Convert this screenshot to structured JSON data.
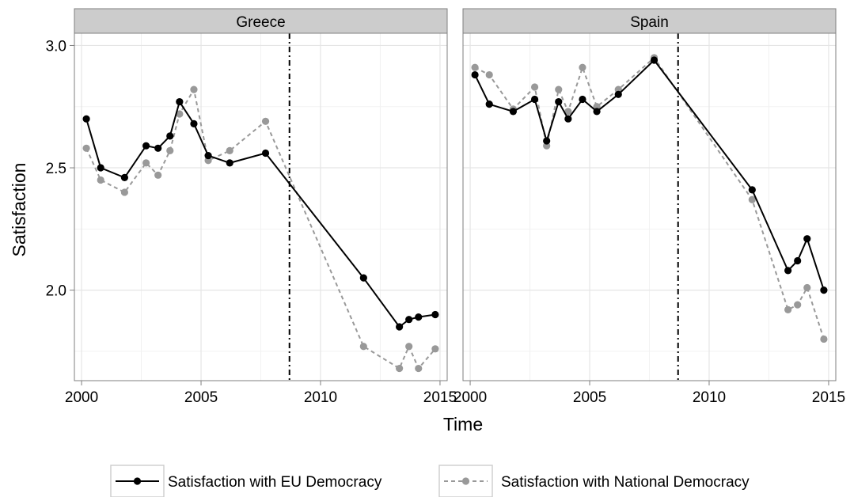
{
  "chart_data": {
    "type": "line",
    "ylabel": "Satisfaction",
    "xlabel": "Time",
    "xlim": [
      1999.7,
      2015.3
    ],
    "ylim": [
      1.63,
      3.05
    ],
    "x_ticks": [
      2000,
      2005,
      2010,
      2015
    ],
    "y_ticks": [
      2.0,
      2.5,
      3.0
    ],
    "y_tick_labels": [
      "2.0",
      "2.5",
      "3.0"
    ],
    "x_tick_labels": [
      "2000",
      "2005",
      "2010",
      "2015"
    ],
    "grid": true,
    "legend_position": "bottom",
    "series_styles": [
      {
        "color": "#000000",
        "dash": "solid"
      },
      {
        "color": "#999999",
        "dash": "dashed"
      }
    ],
    "facets": [
      {
        "title": "Greece",
        "vline_x": 2008.7,
        "series": [
          {
            "name": "Satisfaction with EU Democracy",
            "points": [
              [
                2000.2,
                2.7
              ],
              [
                2000.8,
                2.5
              ],
              [
                2001.8,
                2.46
              ],
              [
                2002.7,
                2.59
              ],
              [
                2003.2,
                2.58
              ],
              [
                2003.7,
                2.63
              ],
              [
                2004.1,
                2.77
              ],
              [
                2004.7,
                2.68
              ],
              [
                2005.3,
                2.55
              ],
              [
                2006.2,
                2.52
              ],
              [
                2007.7,
                2.56
              ],
              [
                2011.8,
                2.05
              ],
              [
                2013.3,
                1.85
              ],
              [
                2013.7,
                1.88
              ],
              [
                2014.1,
                1.89
              ],
              [
                2014.8,
                1.9
              ]
            ]
          },
          {
            "name": "Satisfaction with National Democracy",
            "points": [
              [
                2000.2,
                2.58
              ],
              [
                2000.8,
                2.45
              ],
              [
                2001.8,
                2.4
              ],
              [
                2002.7,
                2.52
              ],
              [
                2003.2,
                2.47
              ],
              [
                2003.7,
                2.57
              ],
              [
                2004.1,
                2.72
              ],
              [
                2004.7,
                2.82
              ],
              [
                2005.3,
                2.53
              ],
              [
                2006.2,
                2.57
              ],
              [
                2007.7,
                2.69
              ],
              [
                2011.8,
                1.77
              ],
              [
                2013.3,
                1.68
              ],
              [
                2013.7,
                1.77
              ],
              [
                2014.1,
                1.68
              ],
              [
                2014.8,
                1.76
              ]
            ]
          }
        ]
      },
      {
        "title": "Spain",
        "vline_x": 2008.7,
        "series": [
          {
            "name": "Satisfaction with EU Democracy",
            "points": [
              [
                2000.2,
                2.88
              ],
              [
                2000.8,
                2.76
              ],
              [
                2001.8,
                2.73
              ],
              [
                2002.7,
                2.78
              ],
              [
                2003.2,
                2.61
              ],
              [
                2003.7,
                2.77
              ],
              [
                2004.1,
                2.7
              ],
              [
                2004.7,
                2.78
              ],
              [
                2005.3,
                2.73
              ],
              [
                2006.2,
                2.8
              ],
              [
                2007.7,
                2.94
              ],
              [
                2011.8,
                2.41
              ],
              [
                2013.3,
                2.08
              ],
              [
                2013.7,
                2.12
              ],
              [
                2014.1,
                2.21
              ],
              [
                2014.8,
                2.0
              ]
            ]
          },
          {
            "name": "Satisfaction with National Democracy",
            "points": [
              [
                2000.2,
                2.91
              ],
              [
                2000.8,
                2.88
              ],
              [
                2001.8,
                2.74
              ],
              [
                2002.7,
                2.83
              ],
              [
                2003.2,
                2.59
              ],
              [
                2003.7,
                2.82
              ],
              [
                2004.1,
                2.73
              ],
              [
                2004.7,
                2.91
              ],
              [
                2005.3,
                2.75
              ],
              [
                2006.2,
                2.82
              ],
              [
                2007.7,
                2.95
              ],
              [
                2011.8,
                2.37
              ],
              [
                2013.3,
                1.92
              ],
              [
                2013.7,
                1.94
              ],
              [
                2014.1,
                2.01
              ],
              [
                2014.8,
                1.8
              ]
            ]
          }
        ]
      }
    ]
  }
}
